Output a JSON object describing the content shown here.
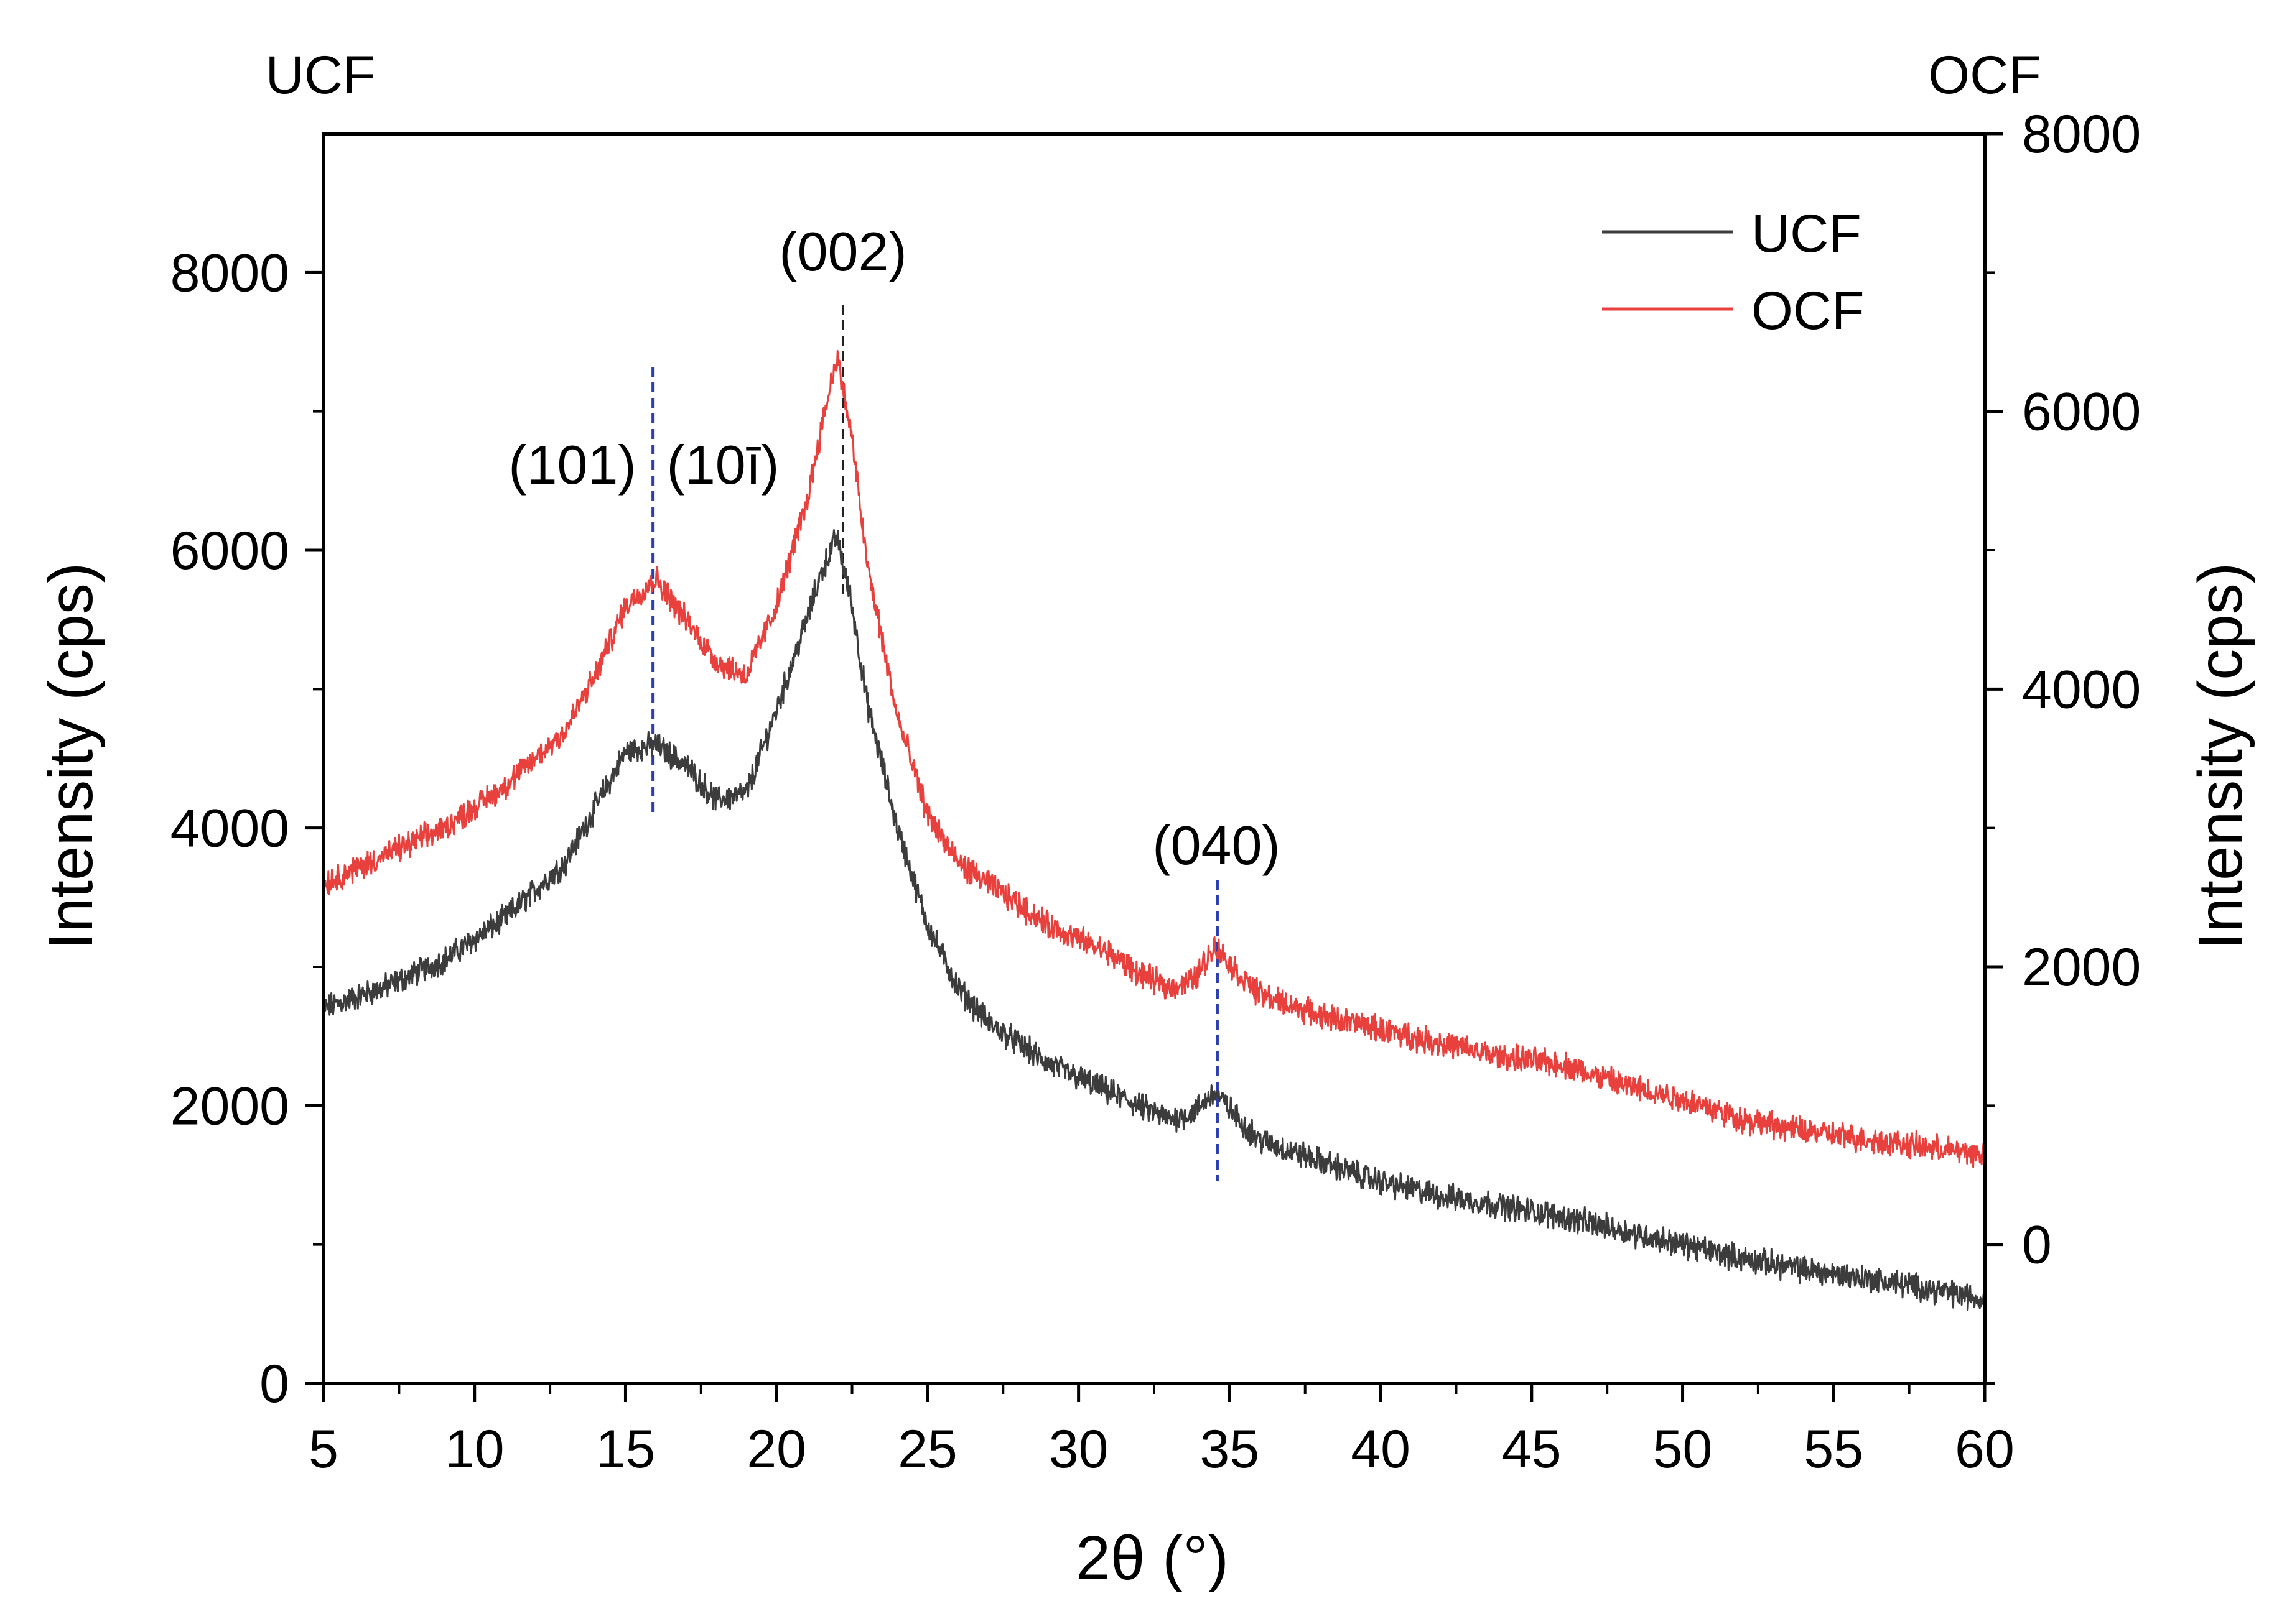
{
  "chart_data": {
    "type": "line",
    "x_axis": {
      "label": "2θ (°)",
      "range": [
        5,
        60
      ],
      "ticks": [
        5,
        10,
        15,
        20,
        25,
        30,
        35,
        40,
        45,
        50,
        55,
        60
      ],
      "tick_labels": [
        "5",
        "10",
        "15",
        "20",
        "25",
        "30",
        "35",
        "40",
        "45",
        "50",
        "55",
        "60"
      ]
    },
    "y_axis_left": {
      "title": "UCF",
      "label": "Intensity (cps)",
      "range": [
        0,
        9000
      ],
      "ticks": [
        0,
        2000,
        4000,
        6000,
        8000
      ],
      "tick_labels": [
        "0",
        "2000",
        "4000",
        "6000",
        "8000"
      ]
    },
    "y_axis_right": {
      "title": "OCF",
      "label": "Intensity (cps)",
      "range": [
        -1000,
        8000
      ],
      "ticks": [
        0,
        2000,
        4000,
        6000,
        8000
      ],
      "tick_labels": [
        "0",
        "2000",
        "4000",
        "6000",
        "8000"
      ]
    },
    "legend": {
      "position": "top-right",
      "entries": [
        {
          "name": "UCF",
          "color": "#3c3c3c"
        },
        {
          "name": "OCF",
          "color": "#e8403c"
        }
      ]
    },
    "series": [
      {
        "name": "UCF",
        "axis": "left",
        "color": "#3c3c3c",
        "x": [
          5,
          7,
          9,
          11,
          13,
          14,
          15,
          16,
          17,
          18,
          19,
          20,
          21,
          21.5,
          22,
          22.5,
          23,
          24,
          25,
          26,
          27,
          28,
          29,
          30,
          31,
          32,
          33,
          33.8,
          34.5,
          35.3,
          36,
          38,
          40,
          42,
          44,
          46,
          48,
          50,
          52,
          54,
          56,
          58,
          60
        ],
        "y": [
          2700,
          2850,
          3050,
          3350,
          3750,
          4150,
          4550,
          4600,
          4450,
          4200,
          4250,
          4850,
          5500,
          5850,
          6100,
          5600,
          4900,
          4000,
          3300,
          2850,
          2600,
          2450,
          2300,
          2200,
          2100,
          2000,
          1900,
          1950,
          2100,
          1900,
          1750,
          1600,
          1450,
          1350,
          1280,
          1200,
          1100,
          1000,
          900,
          820,
          760,
          690,
          600
        ],
        "noise": 75
      },
      {
        "name": "OCF",
        "axis": "right",
        "color": "#e8403c",
        "x": [
          5,
          7,
          9,
          11,
          13,
          14,
          15,
          16,
          17,
          18,
          19,
          20,
          21,
          21.5,
          22,
          22.5,
          23,
          24,
          25,
          26,
          27,
          28,
          29,
          30,
          31,
          32,
          33,
          33.8,
          34.5,
          35.3,
          36,
          38,
          40,
          42,
          44,
          46,
          48,
          50,
          52,
          54,
          56,
          58,
          60
        ],
        "y": [
          2600,
          2800,
          3000,
          3300,
          3700,
          4100,
          4600,
          4800,
          4500,
          4200,
          4100,
          4600,
          5350,
          5900,
          6400,
          5800,
          4900,
          3800,
          3100,
          2750,
          2600,
          2450,
          2300,
          2200,
          2100,
          1950,
          1850,
          1900,
          2150,
          1950,
          1800,
          1650,
          1550,
          1450,
          1350,
          1300,
          1150,
          1050,
          900,
          820,
          760,
          700,
          650
        ],
        "noise": 75
      }
    ],
    "annotations": [
      {
        "text": "(101)",
        "x": 15.8
      },
      {
        "text": "(10ī)",
        "x": 16.3
      },
      {
        "text": "(002)",
        "x": 22.2
      },
      {
        "text": "(040)",
        "x": 34.6
      }
    ],
    "reference_lines": [
      {
        "x": 15.9,
        "color": "#2b3fb0"
      },
      {
        "x": 22.2,
        "color": "#222222"
      },
      {
        "x": 34.6,
        "color": "#2b3fb0"
      }
    ]
  }
}
